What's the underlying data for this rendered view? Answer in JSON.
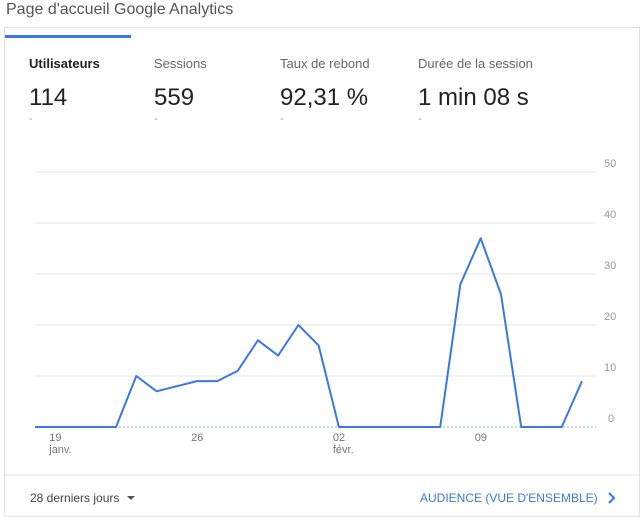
{
  "header": {
    "title": "Page d'accueil Google Analytics"
  },
  "metrics": [
    {
      "label": "Utilisateurs",
      "value": "114",
      "change": "-"
    },
    {
      "label": "Sessions",
      "value": "559",
      "change": "-"
    },
    {
      "label": "Taux de rebond",
      "value": "92,31 %",
      "change": "-"
    },
    {
      "label": "Durée de la session",
      "value": "1 min 08 s",
      "change": "-"
    }
  ],
  "chart_data": {
    "type": "line",
    "categories": [
      null,
      "19\njanv.",
      null,
      null,
      null,
      null,
      null,
      null,
      "26",
      null,
      null,
      null,
      null,
      null,
      null,
      "02\nfévr.",
      null,
      null,
      null,
      null,
      null,
      null,
      "09",
      null,
      null,
      null,
      null,
      null
    ],
    "values": [
      0,
      0,
      0,
      0,
      0,
      10,
      7,
      8,
      9,
      9,
      11,
      17,
      14,
      20,
      16,
      0,
      0,
      0,
      0,
      0,
      0,
      28,
      37,
      26,
      0,
      0,
      0,
      9
    ],
    "color": "#3b78e7",
    "ylim": [
      0,
      50
    ],
    "yticks": [
      0,
      10,
      20,
      30,
      40,
      50
    ],
    "grid": true
  },
  "footer": {
    "range": "28 derniers jours",
    "link": "AUDIENCE (VUE D'ENSEMBLE)"
  }
}
